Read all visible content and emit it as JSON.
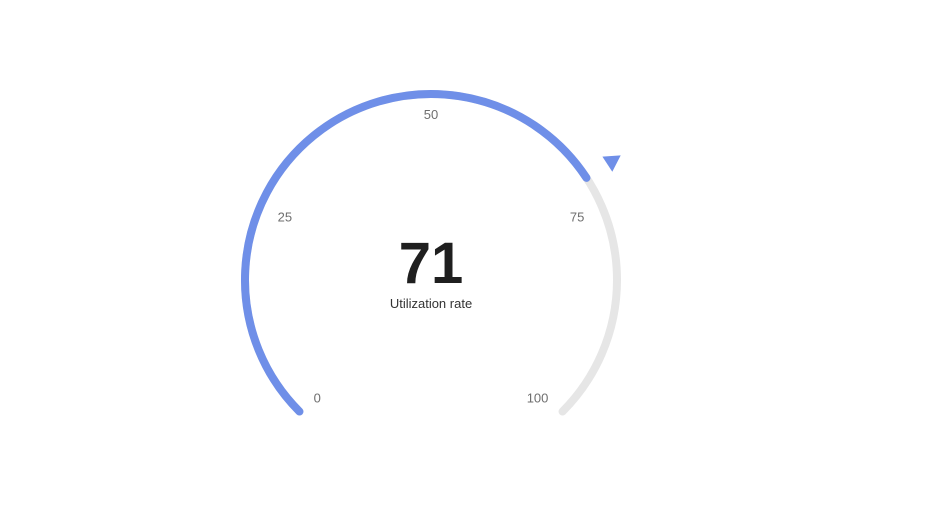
{
  "chart_data": {
    "type": "gauge",
    "min": 0,
    "max": 100,
    "value": 71,
    "value_label": "71",
    "name": "Utilization rate",
    "tick_labels": [
      "0",
      "25",
      "50",
      "75",
      "100"
    ],
    "tick_values": [
      0,
      25,
      50,
      75,
      100
    ],
    "start_angle_deg": 225,
    "end_angle_deg": -45,
    "colors": {
      "progress": "#6f8fe8",
      "track": "#e6e6e6",
      "pointer": "#6f8fe8",
      "value_text": "#1f1f1f",
      "tick_text": "#6e6e6e"
    }
  }
}
